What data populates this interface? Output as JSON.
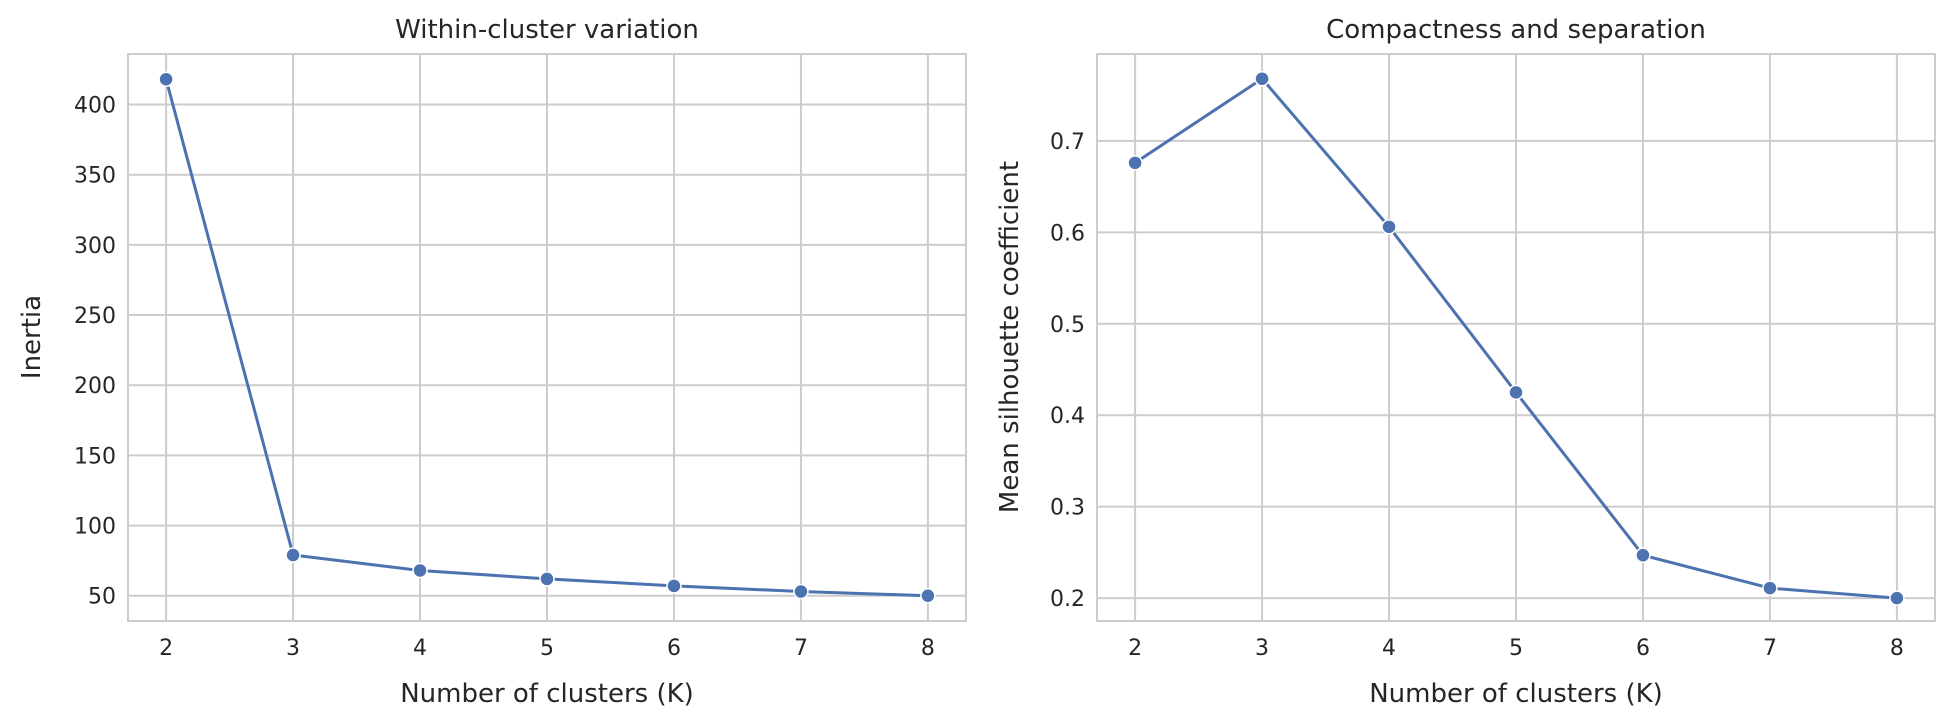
{
  "chart_data": [
    {
      "type": "line",
      "title": "Within-cluster variation",
      "xlabel": "Number of clusters (K)",
      "ylabel": "Inertia",
      "x": [
        2,
        3,
        4,
        5,
        6,
        7,
        8
      ],
      "xlim": [
        1.7,
        8.3
      ],
      "ylim": [
        32,
        436
      ],
      "xticks": [
        2,
        3,
        4,
        5,
        6,
        7,
        8
      ],
      "yticks": [
        50,
        100,
        150,
        200,
        250,
        300,
        350,
        400
      ],
      "series": [
        {
          "values": [
            418,
            79,
            68,
            62,
            57,
            53,
            50
          ],
          "color": "#4c72b0",
          "marker": "circle"
        }
      ],
      "grid": true
    },
    {
      "type": "line",
      "title": "Compactness and separation",
      "xlabel": "Number of clusters (K)",
      "ylabel": "Mean silhouette coefficient",
      "x": [
        2,
        3,
        4,
        5,
        6,
        7,
        8
      ],
      "xlim": [
        1.7,
        8.3
      ],
      "ylim": [
        0.175,
        0.795
      ],
      "xticks": [
        2,
        3,
        4,
        5,
        6,
        7,
        8
      ],
      "yticks": [
        "0.2",
        "0.3",
        "0.4",
        "0.5",
        "0.6",
        "0.7"
      ],
      "series": [
        {
          "values": [
            0.676,
            0.768,
            0.606,
            0.425,
            0.247,
            0.211,
            0.2
          ],
          "color": "#4c72b0",
          "marker": "circle"
        }
      ],
      "grid": true
    }
  ]
}
